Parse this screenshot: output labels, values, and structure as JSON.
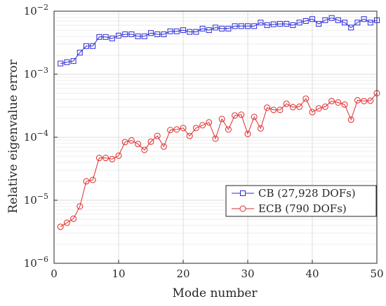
{
  "chart_data": {
    "type": "line",
    "xlabel": "Mode number",
    "ylabel": "Relative eigenvalue error",
    "xlim": [
      0,
      50
    ],
    "ylim": [
      1e-06,
      0.01
    ],
    "yscale": "log",
    "grid": true,
    "legend_placement": "lower-right",
    "x_ticks": [
      "0",
      "10",
      "20",
      "30",
      "40",
      "50"
    ],
    "y_ticks": [
      {
        "base": "10",
        "exp": "−6"
      },
      {
        "base": "10",
        "exp": "−5"
      },
      {
        "base": "10",
        "exp": "−4"
      },
      {
        "base": "10",
        "exp": "−3"
      },
      {
        "base": "10",
        "exp": "−2"
      }
    ],
    "x": [
      1,
      2,
      3,
      4,
      5,
      6,
      7,
      8,
      9,
      10,
      11,
      12,
      13,
      14,
      15,
      16,
      17,
      18,
      19,
      20,
      21,
      22,
      23,
      24,
      25,
      26,
      27,
      28,
      29,
      30,
      31,
      32,
      33,
      34,
      35,
      36,
      37,
      38,
      39,
      40,
      41,
      42,
      43,
      44,
      45,
      46,
      47,
      48,
      49,
      50
    ],
    "series": [
      {
        "name": "CB (27,928 DOFs)",
        "color": "#2b2bd6",
        "marker": "square",
        "values": [
          0.00148,
          0.00155,
          0.00162,
          0.0022,
          0.0028,
          0.0028,
          0.0039,
          0.0039,
          0.0037,
          0.0041,
          0.0043,
          0.0043,
          0.004,
          0.004,
          0.0045,
          0.0043,
          0.0043,
          0.0048,
          0.0048,
          0.005,
          0.0047,
          0.0047,
          0.0053,
          0.005,
          0.0055,
          0.0053,
          0.0053,
          0.0058,
          0.0058,
          0.0058,
          0.0058,
          0.0066,
          0.006,
          0.0062,
          0.0063,
          0.0063,
          0.006,
          0.0066,
          0.007,
          0.0075,
          0.0063,
          0.0072,
          0.0078,
          0.0072,
          0.0066,
          0.0055,
          0.0066,
          0.0075,
          0.0066,
          0.0072
        ]
      },
      {
        "name": "ECB (790 DOFs)",
        "color": "#e02a2a",
        "marker": "circle",
        "values": [
          3.8e-06,
          4.4e-06,
          5.1e-06,
          8e-06,
          2e-05,
          2.1e-05,
          4.7e-05,
          4.7e-05,
          4.5e-05,
          5.1e-05,
          8.4e-05,
          8.9e-05,
          7.8e-05,
          6.3e-05,
          8.5e-05,
          0.000105,
          7.1e-05,
          0.00013,
          0.000133,
          0.00014,
          0.000105,
          0.00014,
          0.000155,
          0.000172,
          9.5e-05,
          0.000195,
          0.000133,
          0.000222,
          0.000228,
          0.000113,
          0.00021,
          0.000138,
          0.000295,
          0.000272,
          0.000272,
          0.00034,
          0.0003,
          0.000305,
          0.00041,
          0.00025,
          0.000287,
          0.000305,
          0.000375,
          0.000355,
          0.00033,
          0.00019,
          0.000385,
          0.000375,
          0.00038,
          0.0005
        ]
      }
    ]
  }
}
